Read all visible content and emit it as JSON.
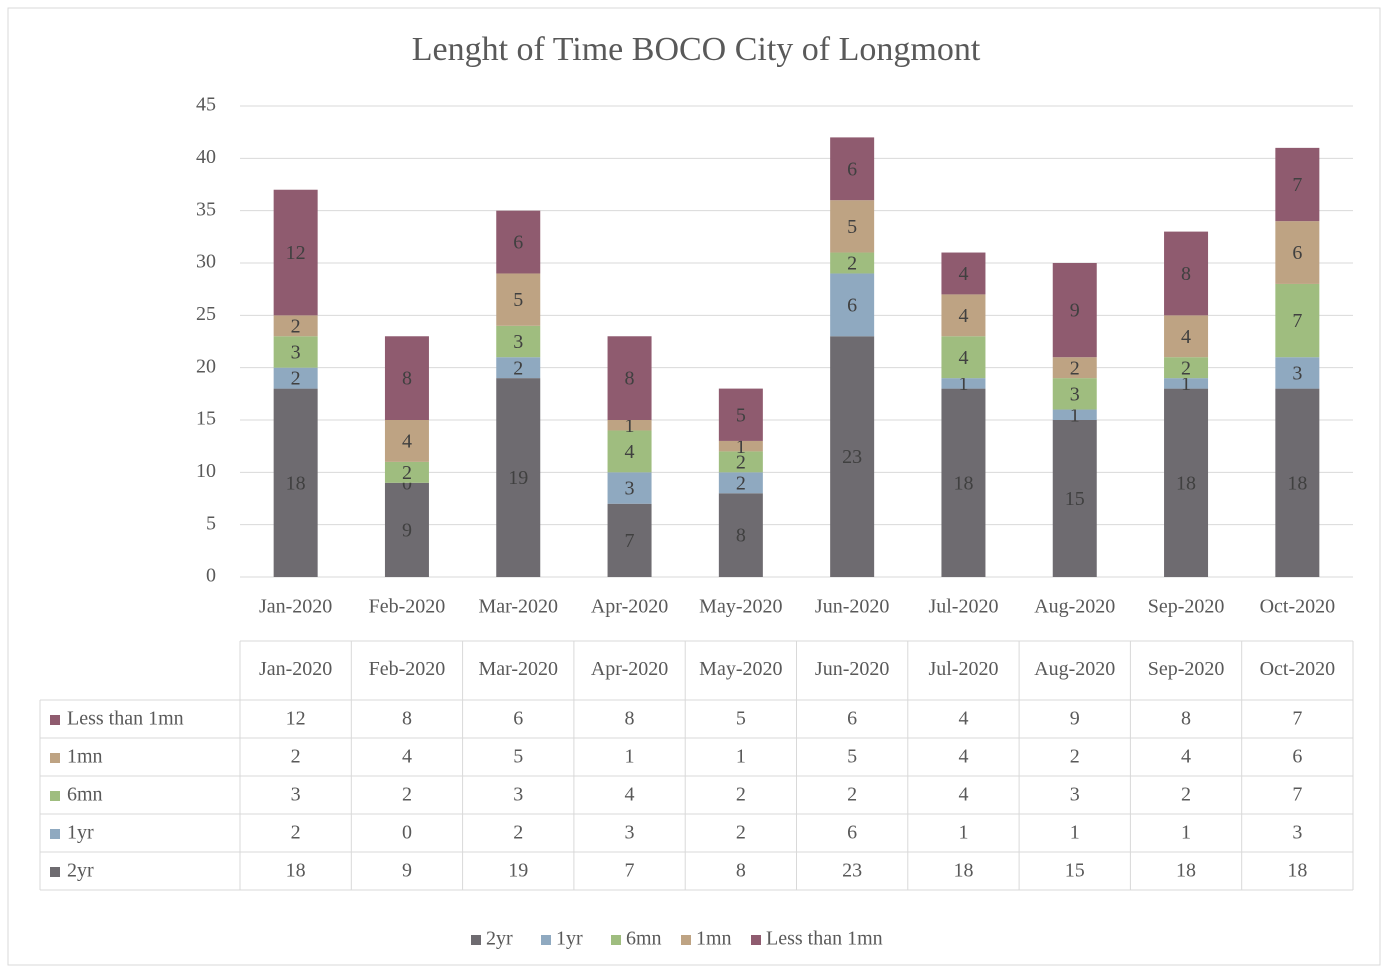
{
  "chart_data": {
    "type": "bar",
    "stacked": true,
    "title": "Lenght of Time BOCO City of Longmont",
    "categories": [
      "Jan-2020",
      "Feb-2020",
      "Mar-2020",
      "Apr-2020",
      "May-2020",
      "Jun-2020",
      "Jul-2020",
      "Aug-2020",
      "Sep-2020",
      "Oct-2020"
    ],
    "series": [
      {
        "name": "2yr",
        "color": "#6e6b70",
        "values": [
          18,
          9,
          19,
          7,
          8,
          23,
          18,
          15,
          18,
          18
        ]
      },
      {
        "name": "1yr",
        "color": "#8fa9c0",
        "values": [
          2,
          0,
          2,
          3,
          2,
          6,
          1,
          1,
          1,
          3
        ]
      },
      {
        "name": "6mn",
        "color": "#9fbd7f",
        "values": [
          3,
          2,
          3,
          4,
          2,
          2,
          4,
          3,
          2,
          7
        ]
      },
      {
        "name": "1mn",
        "color": "#bea383",
        "values": [
          2,
          4,
          5,
          1,
          1,
          5,
          4,
          2,
          4,
          6
        ]
      },
      {
        "name": "Less than 1mn",
        "color": "#8f5b6f",
        "values": [
          12,
          8,
          6,
          8,
          5,
          6,
          4,
          9,
          8,
          7
        ]
      }
    ],
    "ylim": [
      0,
      45
    ],
    "yticks": [
      0,
      5,
      10,
      15,
      20,
      25,
      30,
      35,
      40,
      45
    ],
    "grid": true,
    "legend": "bottom",
    "data_table": true
  }
}
